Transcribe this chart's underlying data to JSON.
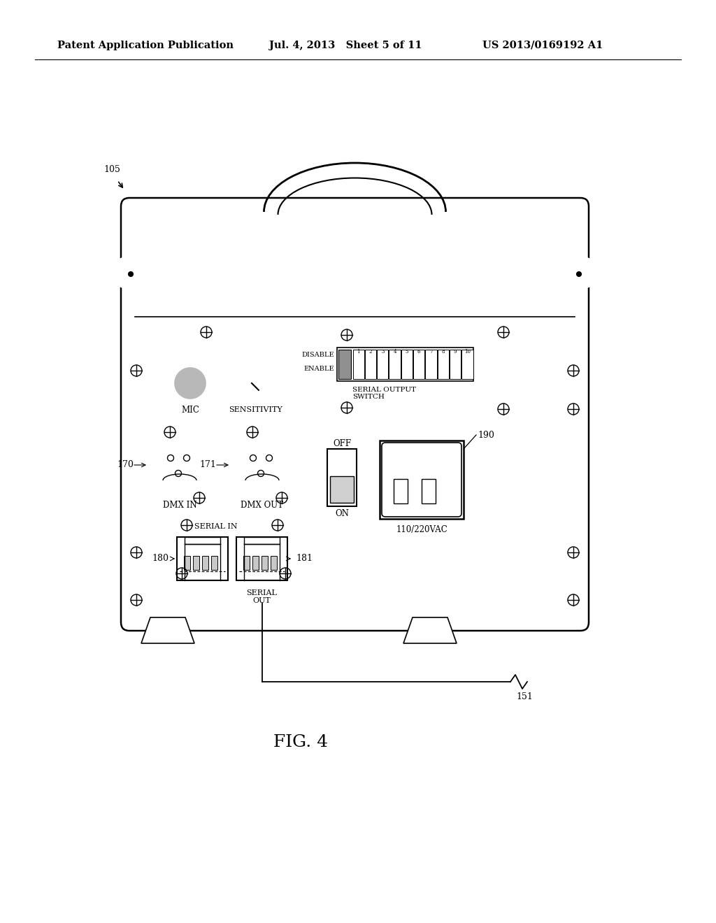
{
  "bg_color": "#ffffff",
  "header_left": "Patent Application Publication",
  "header_mid": "Jul. 4, 2013   Sheet 5 of 11",
  "header_right": "US 2013/0169192 A1",
  "fig_label": "FIG. 4",
  "ref_105": "105",
  "ref_151": "151",
  "ref_170": "170",
  "ref_171": "171",
  "ref_180": "180",
  "ref_181": "181",
  "ref_190": "190"
}
